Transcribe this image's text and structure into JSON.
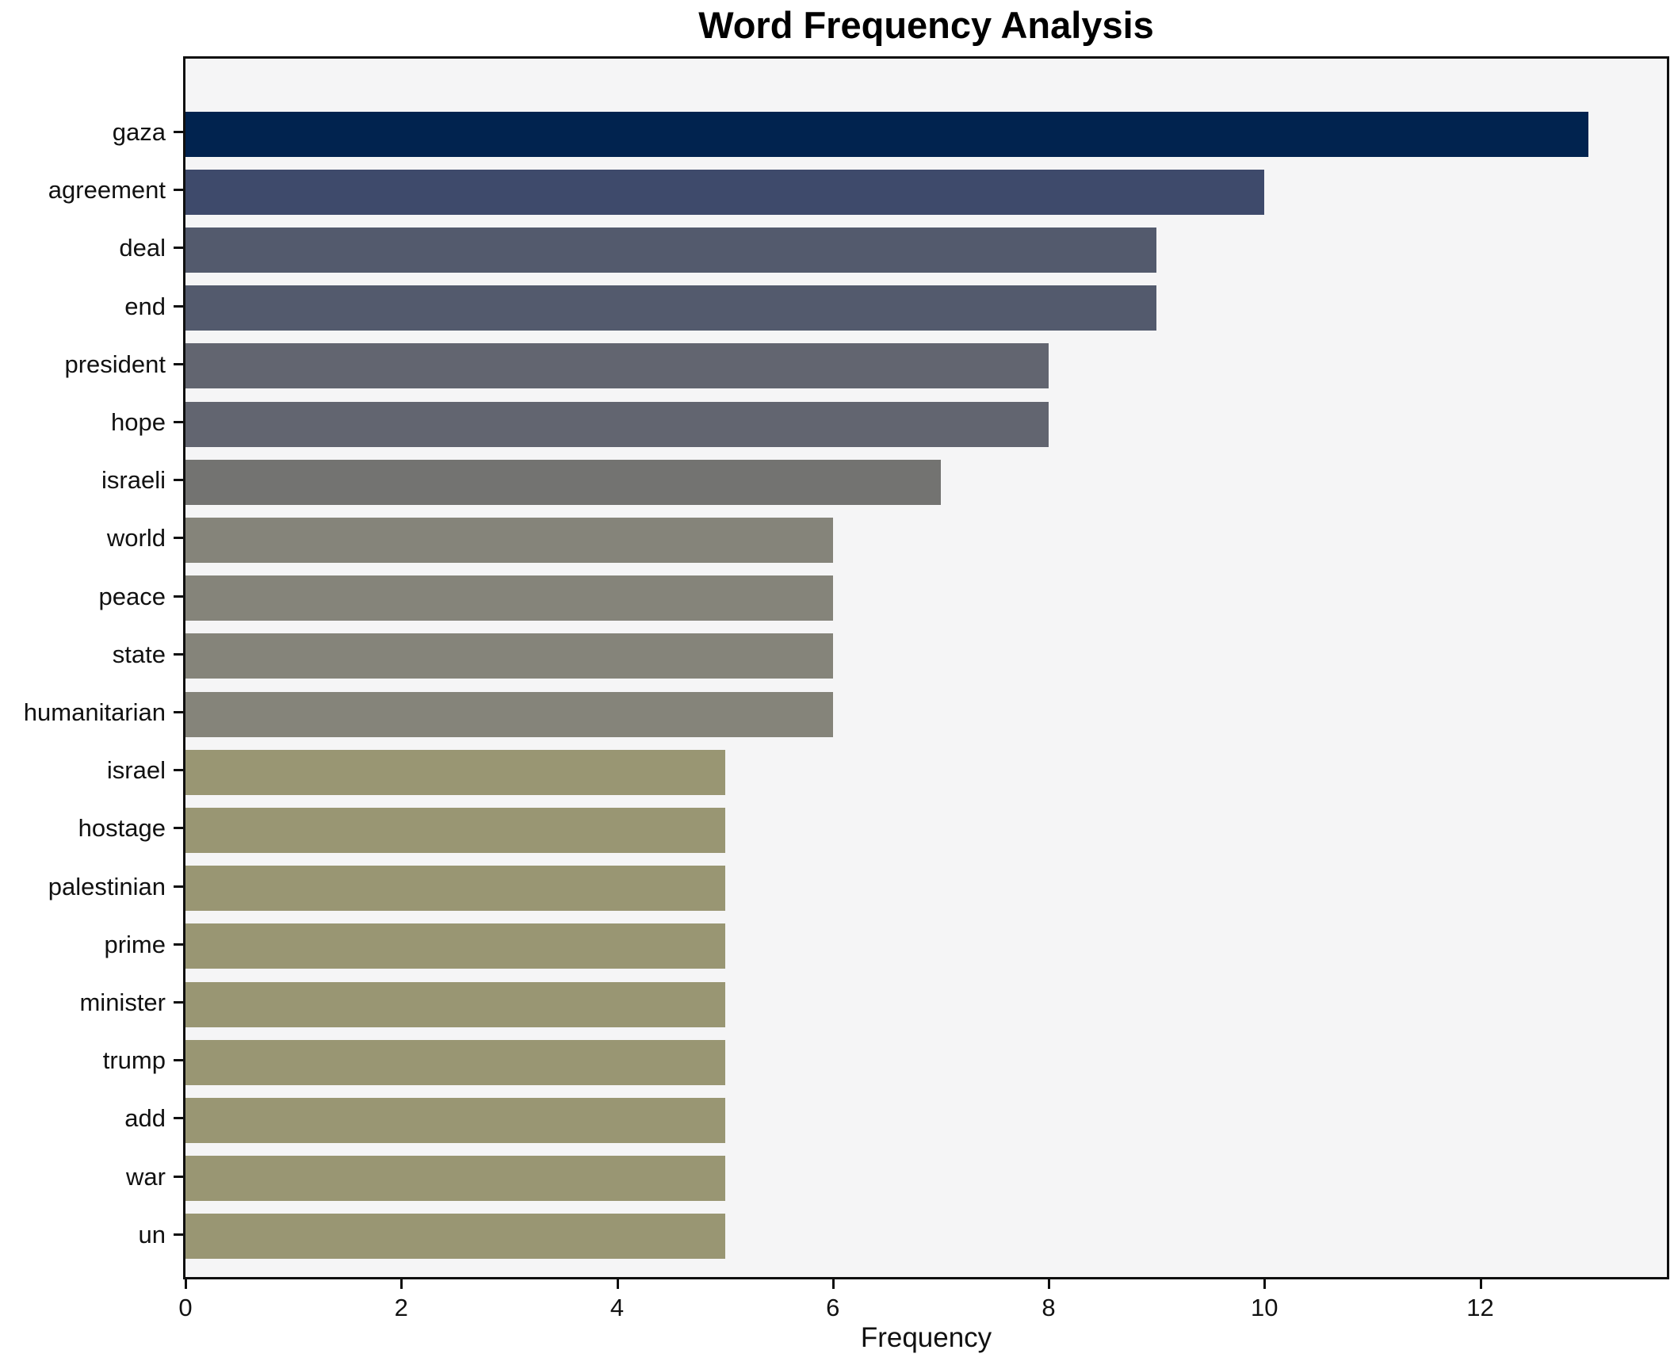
{
  "title": "Word Frequency Analysis",
  "xlabel": "Frequency",
  "colors": {
    "plot_background": "#f5f5f6",
    "figure_background": "#ffffff",
    "spine": "#0f0f0f",
    "text": "#111111"
  },
  "chart_data": {
    "type": "bar",
    "orientation": "horizontal",
    "title": "Word Frequency Analysis",
    "xlabel": "Frequency",
    "ylabel": "",
    "grid": false,
    "legend": null,
    "xlim": [
      0,
      13.73
    ],
    "xticks": [
      0,
      2,
      4,
      6,
      8,
      10,
      12
    ],
    "categories": [
      "gaza",
      "agreement",
      "deal",
      "end",
      "president",
      "hope",
      "israeli",
      "world",
      "peace",
      "state",
      "humanitarian",
      "israel",
      "hostage",
      "palestinian",
      "prime",
      "minister",
      "trump",
      "add",
      "war",
      "un"
    ],
    "values": [
      13,
      10,
      9,
      9,
      8,
      8,
      7,
      6,
      6,
      6,
      6,
      5,
      5,
      5,
      5,
      5,
      5,
      5,
      5,
      5
    ],
    "bar_colors": [
      "#01234f",
      "#3e4a6b",
      "#535a6d",
      "#535a6d",
      "#626570",
      "#626570",
      "#737371",
      "#85847a",
      "#85847a",
      "#85847a",
      "#85847a",
      "#999673",
      "#999673",
      "#999673",
      "#999673",
      "#999673",
      "#999673",
      "#999673",
      "#999673",
      "#999673"
    ]
  }
}
